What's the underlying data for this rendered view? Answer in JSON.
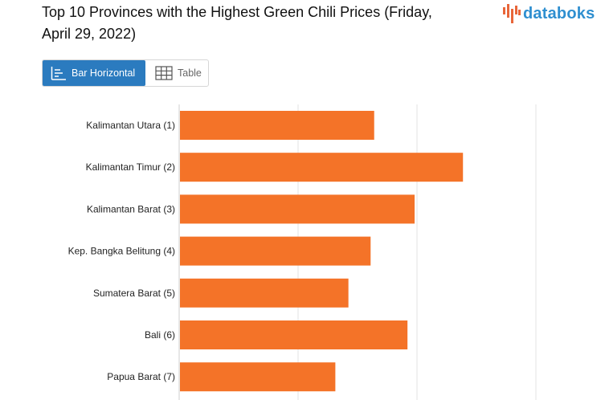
{
  "title": "Top 10 Provinces with the Highest Green Chili Prices (Friday, April 29, 2022)",
  "brand": {
    "name": "databoks",
    "color": "#2f8fd0",
    "accent": "#e8663a"
  },
  "view_toggle": {
    "active_label": "Bar Horizontal",
    "inactive_label": "Table",
    "active_color": "#2b7bbf"
  },
  "chart_data": {
    "type": "bar",
    "orientation": "horizontal",
    "categories": [
      "Kalimantan Utara (1)",
      "Kalimantan Timur (2)",
      "Kalimantan Barat (3)",
      "Kep. Bangka Belitung (4)",
      "Sumatera Barat (5)",
      "Bali (6)",
      "Papua Barat (7)"
    ],
    "values": [
      49200,
      71600,
      59400,
      48300,
      42700,
      57600,
      39400
    ],
    "bar_color": "#f47328",
    "xlim": [
      0,
      90000
    ],
    "grid": true,
    "title": "Top 10 Provinces with the Highest Green Chili Prices (Friday, April 29, 2022)",
    "xlabel": "",
    "ylabel": ""
  }
}
